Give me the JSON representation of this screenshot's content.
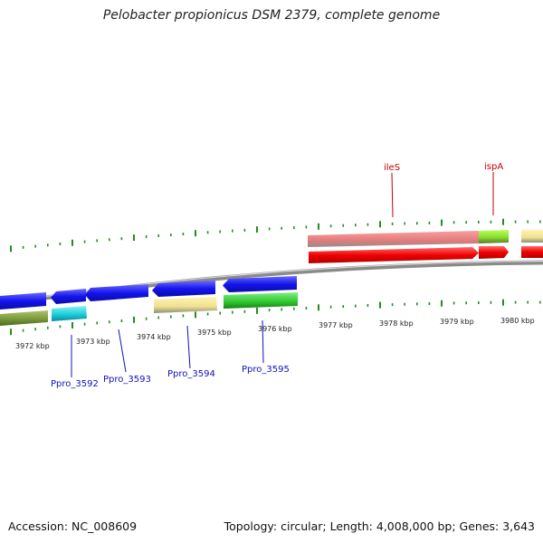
{
  "title": "Pelobacter propionicus DSM 2379, complete genome",
  "footer": {
    "accession": "Accession: NC_008609",
    "summary": "Topology: circular; Length: 4,008,000 bp; Genes: 3,643"
  },
  "colors": {
    "backbone": "#8a8a8a",
    "tick": "#1f8f1f",
    "blue_label": "#1010c0",
    "red_label": "#c00000"
  },
  "kbp_labels": [
    {
      "text": "3972 kbp"
    },
    {
      "text": "3973 kbp"
    },
    {
      "text": "3974 kbp"
    },
    {
      "text": "3975 kbp"
    },
    {
      "text": "3976 kbp"
    },
    {
      "text": "3977 kbp"
    },
    {
      "text": "3978 kbp"
    },
    {
      "text": "3979 kbp"
    },
    {
      "text": "3980 kbp"
    }
  ],
  "gene_labels": [
    {
      "name": "Ppro_3592"
    },
    {
      "name": "Ppro_3593"
    },
    {
      "name": "Ppro_3594"
    },
    {
      "name": "Ppro_3595"
    },
    {
      "name": "ileS"
    },
    {
      "name": "ispA"
    }
  ]
}
